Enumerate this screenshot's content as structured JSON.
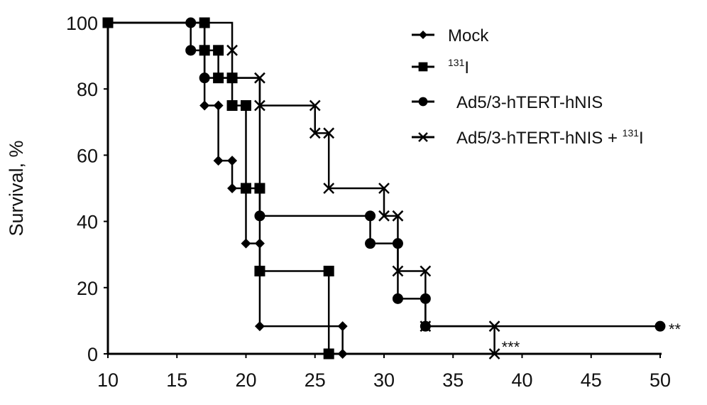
{
  "chart_data": {
    "type": "line",
    "subtype": "kaplan-meier-step",
    "title": "",
    "xlabel": "",
    "ylabel": "Survival, %",
    "xlim": [
      10,
      50
    ],
    "ylim": [
      0,
      100
    ],
    "x_ticks": [
      10,
      15,
      20,
      25,
      30,
      35,
      40,
      45,
      50
    ],
    "y_ticks": [
      0,
      20,
      40,
      60,
      80,
      100
    ],
    "grid": false,
    "legend_position": "upper right",
    "series": [
      {
        "name": "Mock",
        "marker": "diamond",
        "steps": [
          [
            10,
            100
          ],
          [
            17,
            100
          ],
          [
            17,
            75
          ],
          [
            18,
            75
          ],
          [
            18,
            58.33
          ],
          [
            19,
            58.33
          ],
          [
            19,
            50
          ],
          [
            20,
            50
          ],
          [
            20,
            33.33
          ],
          [
            21,
            33.33
          ],
          [
            21,
            8.33
          ],
          [
            27,
            8.33
          ],
          [
            27,
            0
          ]
        ],
        "markers": [
          [
            17,
            75
          ],
          [
            18,
            75
          ],
          [
            18,
            58.33
          ],
          [
            19,
            58.33
          ],
          [
            19,
            50
          ],
          [
            20,
            33.33
          ],
          [
            21,
            33.33
          ],
          [
            21,
            8.33
          ],
          [
            27,
            8.33
          ],
          [
            27,
            0
          ]
        ]
      },
      {
        "name": "131I",
        "legend_sup": "131",
        "legend_main": "I",
        "marker": "square",
        "steps": [
          [
            10,
            100
          ],
          [
            17,
            100
          ],
          [
            17,
            91.67
          ],
          [
            18,
            91.67
          ],
          [
            18,
            83.33
          ],
          [
            19,
            83.33
          ],
          [
            19,
            75
          ],
          [
            20,
            75
          ],
          [
            20,
            50
          ],
          [
            21,
            50
          ],
          [
            21,
            25
          ],
          [
            26,
            25
          ],
          [
            26,
            0
          ]
        ],
        "markers": [
          [
            10,
            100
          ],
          [
            17,
            100
          ],
          [
            17,
            91.67
          ],
          [
            18,
            91.67
          ],
          [
            18,
            83.33
          ],
          [
            19,
            83.33
          ],
          [
            19,
            75
          ],
          [
            20,
            75
          ],
          [
            20,
            50
          ],
          [
            21,
            50
          ],
          [
            21,
            25
          ],
          [
            26,
            25
          ],
          [
            26,
            0
          ]
        ]
      },
      {
        "name": "Ad5/3-hTERT-hNIS",
        "marker": "circle",
        "steps": [
          [
            10,
            100
          ],
          [
            16,
            100
          ],
          [
            16,
            91.67
          ],
          [
            17,
            91.67
          ],
          [
            17,
            83.33
          ],
          [
            21,
            83.33
          ],
          [
            21,
            41.67
          ],
          [
            29,
            41.67
          ],
          [
            29,
            33.33
          ],
          [
            31,
            33.33
          ],
          [
            31,
            16.67
          ],
          [
            33,
            16.67
          ],
          [
            33,
            8.33
          ],
          [
            50,
            8.33
          ]
        ],
        "markers": [
          [
            16,
            100
          ],
          [
            16,
            91.67
          ],
          [
            17,
            83.33
          ],
          [
            21,
            41.67
          ],
          [
            29,
            41.67
          ],
          [
            29,
            33.33
          ],
          [
            31,
            33.33
          ],
          [
            31,
            16.67
          ],
          [
            33,
            16.67
          ],
          [
            33,
            8.33
          ],
          [
            50,
            8.33
          ]
        ]
      },
      {
        "name": "Ad5/3-hTERT-hNIS + 131I",
        "legend_main": "Ad5/3-hTERT-hNIS + ",
        "legend_sup": "131",
        "legend_tail": "I",
        "marker": "x",
        "steps": [
          [
            10,
            100
          ],
          [
            19,
            100
          ],
          [
            19,
            91.67
          ],
          [
            19,
            83.33
          ],
          [
            21,
            83.33
          ],
          [
            21,
            75
          ],
          [
            25,
            75
          ],
          [
            25,
            66.67
          ],
          [
            26,
            66.67
          ],
          [
            26,
            50
          ],
          [
            30,
            50
          ],
          [
            30,
            41.67
          ],
          [
            31,
            41.67
          ],
          [
            31,
            25
          ],
          [
            33,
            25
          ],
          [
            33,
            8.33
          ],
          [
            38,
            8.33
          ],
          [
            38,
            0
          ]
        ],
        "markers": [
          [
            19,
            91.67
          ],
          [
            21,
            83.33
          ],
          [
            21,
            75
          ],
          [
            25,
            75
          ],
          [
            25,
            66.67
          ],
          [
            26,
            66.67
          ],
          [
            26,
            50
          ],
          [
            30,
            50
          ],
          [
            30,
            41.67
          ],
          [
            31,
            41.67
          ],
          [
            31,
            25
          ],
          [
            33,
            25
          ],
          [
            33,
            8.33
          ],
          [
            38,
            8.33
          ],
          [
            38,
            0
          ]
        ]
      }
    ],
    "annotations": [
      {
        "text": "**",
        "x": 50,
        "y": 8.33,
        "series": "Ad5/3-hTERT-hNIS"
      },
      {
        "text": "***",
        "x": 38,
        "y": 0,
        "series": "Ad5/3-hTERT-hNIS + 131I"
      }
    ]
  },
  "axes": {
    "ylabel": "Survival, %",
    "x_tick_labels": [
      "10",
      "15",
      "20",
      "25",
      "30",
      "35",
      "40",
      "45",
      "50"
    ],
    "y_tick_labels": [
      "0",
      "20",
      "40",
      "60",
      "80",
      "100"
    ]
  },
  "legend": {
    "items": [
      {
        "label": "Mock"
      },
      {
        "sup": "131",
        "label": "I"
      },
      {
        "label": "Ad5/3-hTERT-hNIS"
      },
      {
        "label": "Ad5/3-hTERT-hNIS + ",
        "sup": "131",
        "tail": "I"
      }
    ]
  },
  "annotations": {
    "double_star": "**",
    "triple_star": "***"
  }
}
